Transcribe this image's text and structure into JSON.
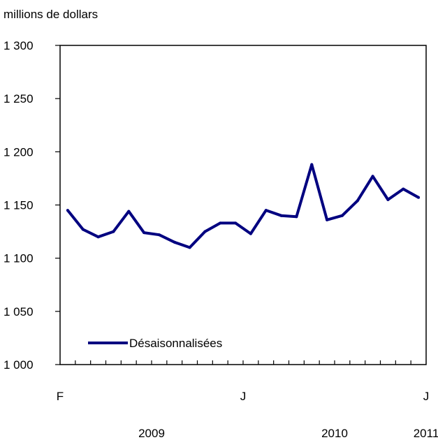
{
  "chart_data": {
    "type": "line",
    "ylabel": "millions de dollars",
    "ylim": [
      1000,
      1300
    ],
    "yticks": [
      1000,
      1050,
      1100,
      1150,
      1200,
      1250,
      1300
    ],
    "ytick_labels": [
      "1 000",
      "1 050",
      "1 100",
      "1 150",
      "1 200",
      "1 250",
      "1 300"
    ],
    "x_count": 18,
    "month_labels": [
      {
        "index": 0,
        "text": "F"
      },
      {
        "index": 9,
        "text": "J"
      },
      {
        "index": 18,
        "text": "J"
      }
    ],
    "year_labels": [
      {
        "index": 4.5,
        "text": "2009"
      },
      {
        "index": 13.5,
        "text": "2010"
      },
      {
        "index": 18,
        "text": "2011"
      }
    ],
    "series": [
      {
        "name": "Désaisonnalisées",
        "color": "#000080",
        "values": [
          1145,
          1127,
          1120,
          1125,
          1144,
          1124,
          1122,
          1115,
          1110,
          1125,
          1133,
          1133,
          1123,
          1145,
          1140,
          1139,
          1188,
          1136,
          1140,
          1154,
          1177,
          1155,
          1165,
          1157
        ]
      }
    ],
    "legend": "bottom-left",
    "grid": false
  }
}
